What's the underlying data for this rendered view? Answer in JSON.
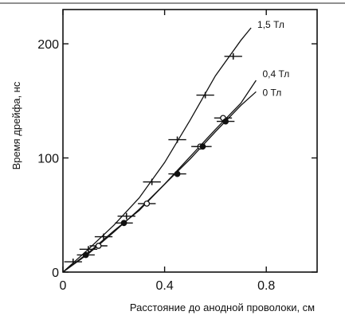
{
  "chart_data": {
    "type": "scatter",
    "title": "",
    "xlabel": "Расстояние до анодной проволоки, см",
    "ylabel": "Время дрейфа, нс",
    "xlim": [
      0,
      1.0
    ],
    "ylim": [
      0,
      230
    ],
    "x_ticks": [
      0,
      0.4,
      0.8
    ],
    "x_tick_labels": [
      "0",
      "0.4",
      "0.8"
    ],
    "y_ticks": [
      0,
      100,
      200
    ],
    "y_tick_labels": [
      "0",
      "100",
      "200"
    ],
    "grid": false,
    "legend": "curve labels at line ends",
    "series": [
      {
        "name": "1,5 Тл",
        "marker": "vertical-tick",
        "color": "#111111",
        "x": [
          0.04,
          0.1,
          0.16,
          0.25,
          0.35,
          0.45,
          0.56,
          0.67
        ],
        "y": [
          9,
          20,
          31,
          49,
          79,
          116,
          155,
          189
        ],
        "xerr": 0.035,
        "curve_x": [
          0,
          0.1,
          0.2,
          0.3,
          0.4,
          0.5,
          0.6,
          0.7,
          0.74
        ],
        "curve_y": [
          0,
          20,
          41,
          65,
          96,
          133,
          172,
          203,
          214
        ]
      },
      {
        "name": "0,4 Тл",
        "marker": "open-circle",
        "color": "#111111",
        "x": [
          0.14,
          0.33,
          0.54,
          0.63
        ],
        "y": [
          23,
          60,
          110,
          135
        ],
        "xerr": 0.035,
        "curve_x": [
          0,
          0.1,
          0.2,
          0.3,
          0.4,
          0.5,
          0.6,
          0.7,
          0.76
        ],
        "curve_y": [
          0,
          17,
          36,
          54,
          77,
          101,
          125,
          148,
          168
        ]
      },
      {
        "name": "0 Тл",
        "marker": "filled-circle",
        "color": "#111111",
        "x": [
          0.09,
          0.24,
          0.45,
          0.55,
          0.64
        ],
        "y": [
          15,
          43,
          86,
          110,
          132
        ],
        "xerr": 0.035,
        "curve_x": [
          0,
          0.1,
          0.2,
          0.3,
          0.4,
          0.5,
          0.6,
          0.7,
          0.76
        ],
        "curve_y": [
          0,
          16,
          35,
          55,
          77,
          99,
          123,
          146,
          158
        ]
      }
    ]
  }
}
